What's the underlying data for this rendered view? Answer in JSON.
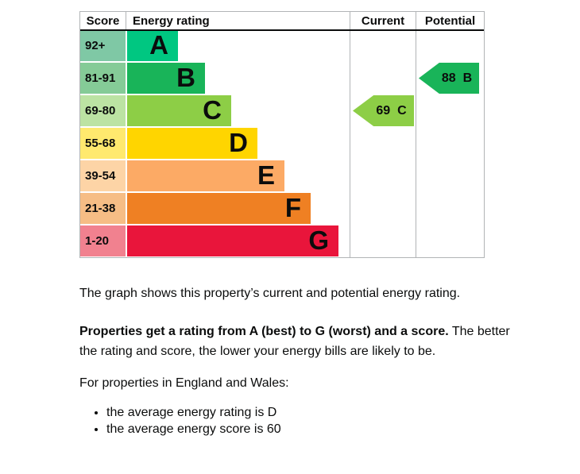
{
  "chart_data": {
    "type": "bar",
    "title": "Energy efficiency rating chart",
    "columns": [
      "Score",
      "Energy rating",
      "Current",
      "Potential"
    ],
    "bands": [
      {
        "score_range": "92+",
        "letter": "A",
        "bar_color": "#00c781",
        "cell_color": "#7fc8a5",
        "bar_width_pct": 22.7
      },
      {
        "score_range": "81-91",
        "letter": "B",
        "bar_color": "#19b459",
        "cell_color": "#85cb97",
        "bar_width_pct": 34.8
      },
      {
        "score_range": "69-80",
        "letter": "C",
        "bar_color": "#8dce46",
        "cell_color": "#bce3a3",
        "bar_width_pct": 46.5
      },
      {
        "score_range": "55-68",
        "letter": "D",
        "bar_color": "#ffd500",
        "cell_color": "#ffe96e",
        "bar_width_pct": 58.2
      },
      {
        "score_range": "39-54",
        "letter": "E",
        "bar_color": "#fcaa65",
        "cell_color": "#fdd4a6",
        "bar_width_pct": 70.2
      },
      {
        "score_range": "21-38",
        "letter": "F",
        "bar_color": "#ef8023",
        "cell_color": "#f6bd85",
        "bar_width_pct": 81.9
      },
      {
        "score_range": "1-20",
        "letter": "G",
        "bar_color": "#e9153b",
        "cell_color": "#f1818f",
        "bar_width_pct": 94.3
      }
    ],
    "current": {
      "score": 69,
      "letter": "C",
      "color": "#8dce46"
    },
    "potential": {
      "score": 88,
      "letter": "B",
      "color": "#19b459"
    }
  },
  "text": {
    "paragraph1": "The graph shows this property’s current and potential energy rating.",
    "paragraph2_bold": "Properties get a rating from A (best) to G (worst) and a score.",
    "paragraph2_rest": "The better",
    "paragraph2_line2": "the rating and score, the lower your energy bills are likely to be.",
    "paragraph3": "For properties in England and Wales:",
    "bullets": [
      "the average energy rating is D",
      "the average energy score is 60"
    ]
  }
}
